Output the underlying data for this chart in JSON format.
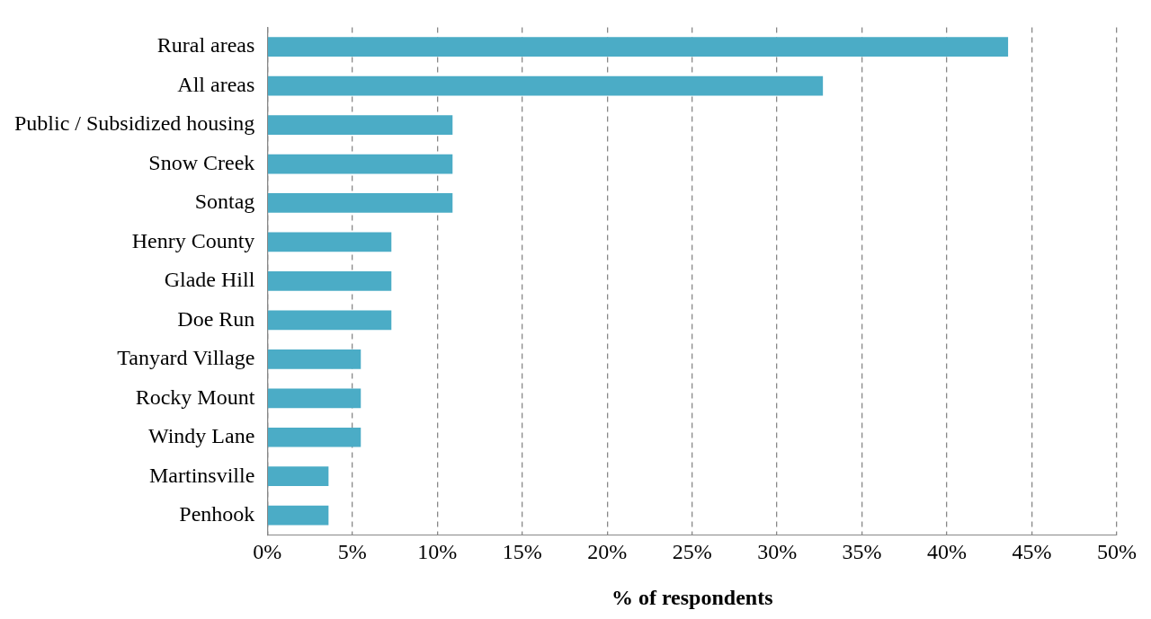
{
  "chart_data": {
    "type": "bar",
    "orientation": "horizontal",
    "xlabel": "% of respondents",
    "categories": [
      "Rural areas",
      "All areas",
      "Public / Subsidized housing",
      "Snow Creek",
      "Sontag",
      "Henry County",
      "Glade Hill",
      "Doe Run",
      "Tanyard Village",
      "Rocky Mount",
      "Windy Lane",
      "Martinsville",
      "Penhook"
    ],
    "values": [
      43.6,
      32.7,
      10.9,
      10.9,
      10.9,
      7.3,
      7.3,
      7.3,
      5.5,
      5.5,
      5.5,
      3.6,
      3.6
    ],
    "color": "#4bacc6",
    "xlim": [
      0,
      50
    ],
    "xticks": [
      {
        "value": 0,
        "label": "0%"
      },
      {
        "value": 5,
        "label": "5%"
      },
      {
        "value": 10,
        "label": "10%"
      },
      {
        "value": 15,
        "label": "15%"
      },
      {
        "value": 20,
        "label": "20%"
      },
      {
        "value": 25,
        "label": "25%"
      },
      {
        "value": 30,
        "label": "30%"
      },
      {
        "value": 35,
        "label": "35%"
      },
      {
        "value": 40,
        "label": "40%"
      },
      {
        "value": 45,
        "label": "45%"
      },
      {
        "value": 50,
        "label": "50%"
      }
    ],
    "grid": "x",
    "legend": false
  }
}
